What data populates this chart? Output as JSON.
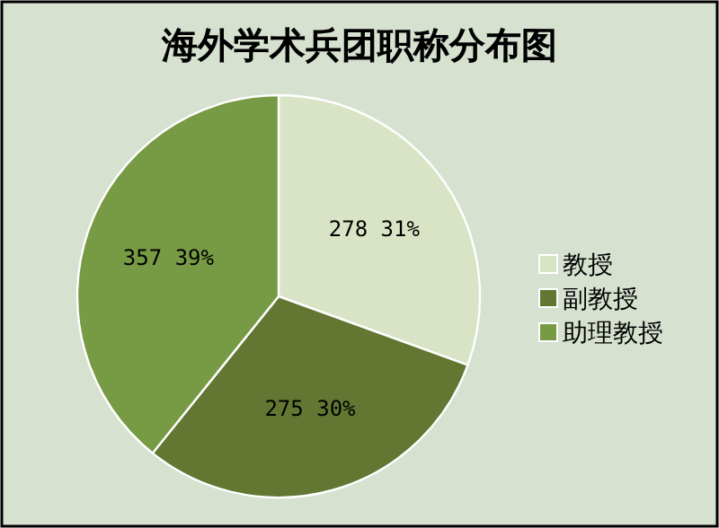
{
  "chart_data": {
    "type": "pie",
    "title": "海外学术兵团职称分布图",
    "categories": [
      "教授",
      "副教授",
      "助理教授"
    ],
    "values": [
      278,
      275,
      357
    ],
    "value_labels": [
      "278 31%",
      "275 30%",
      "357 39%"
    ],
    "colors": [
      "#d9e3c5",
      "#637733",
      "#779a44"
    ],
    "legend": "right"
  }
}
